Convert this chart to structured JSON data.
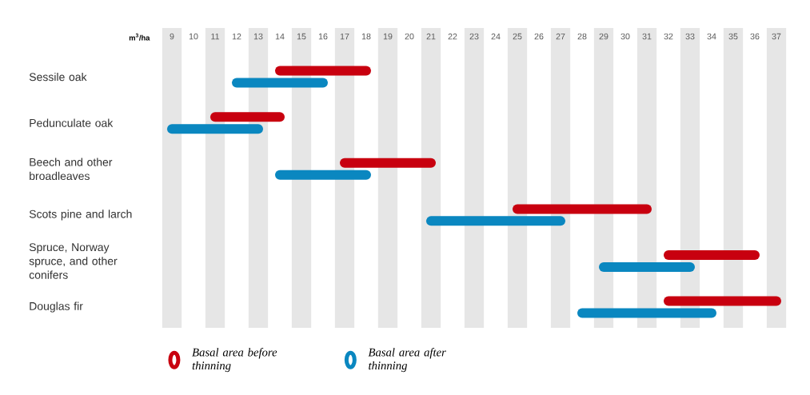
{
  "chart_data": {
    "type": "bar",
    "orientation": "horizontal",
    "xlabel": "m$^{3}$/ha",
    "categories": [
      "Sessile oak",
      "Pedunculate oak",
      "Beech and other broadleaves",
      "Scots pine and larch",
      "Spruce, Norway spruce, and other conifers",
      "Douglas fir"
    ],
    "series": [
      {
        "name": "Basal area before thinning",
        "color": "#c8000f",
        "base": [
          14,
          11,
          17,
          25,
          32,
          32
        ],
        "values": [
          4,
          3,
          4,
          6,
          4,
          5
        ]
      },
      {
        "name": "Basal area after thinning",
        "color": "#0a87c0",
        "base": [
          12,
          9,
          14,
          21,
          29,
          28
        ],
        "values": [
          4,
          4,
          4,
          6,
          4,
          6
        ]
      }
    ],
    "xlim": [
      8.5,
      37.5
    ],
    "xticks": [
      9,
      10,
      11,
      12,
      13,
      14,
      15,
      16,
      17,
      18,
      19,
      20,
      21,
      22,
      23,
      24,
      25,
      26,
      27,
      28,
      29,
      30,
      31,
      32,
      33,
      34,
      35,
      36,
      37
    ],
    "bands": [
      {
        "axis": "x",
        "from": 8.55,
        "to": 9.45,
        "color": "#e6e6e6"
      },
      {
        "axis": "x",
        "from": 10.55,
        "to": 11.45,
        "color": "#e6e6e6"
      },
      {
        "axis": "x",
        "from": 12.55,
        "to": 13.45,
        "color": "#e6e6e6"
      },
      {
        "axis": "x",
        "from": 14.55,
        "to": 15.45,
        "color": "#e6e6e6"
      },
      {
        "axis": "x",
        "from": 16.55,
        "to": 17.45,
        "color": "#e6e6e6"
      },
      {
        "axis": "x",
        "from": 18.55,
        "to": 19.45,
        "color": "#e6e6e6"
      },
      {
        "axis": "x",
        "from": 20.55,
        "to": 21.45,
        "color": "#e6e6e6"
      },
      {
        "axis": "x",
        "from": 22.55,
        "to": 23.45,
        "color": "#e6e6e6"
      },
      {
        "axis": "x",
        "from": 24.55,
        "to": 25.45,
        "color": "#e6e6e6"
      },
      {
        "axis": "x",
        "from": 26.55,
        "to": 27.45,
        "color": "#e6e6e6"
      },
      {
        "axis": "x",
        "from": 28.55,
        "to": 29.45,
        "color": "#e6e6e6"
      },
      {
        "axis": "x",
        "from": 30.55,
        "to": 31.45,
        "color": "#e6e6e6"
      },
      {
        "axis": "x",
        "from": 32.55,
        "to": 33.45,
        "color": "#e6e6e6"
      },
      {
        "axis": "x",
        "from": 34.55,
        "to": 35.45,
        "color": "#e6e6e6"
      },
      {
        "axis": "x",
        "from": 36.55,
        "to": 37.45,
        "color": "#e6e6e6"
      }
    ],
    "legend": "bottom"
  }
}
